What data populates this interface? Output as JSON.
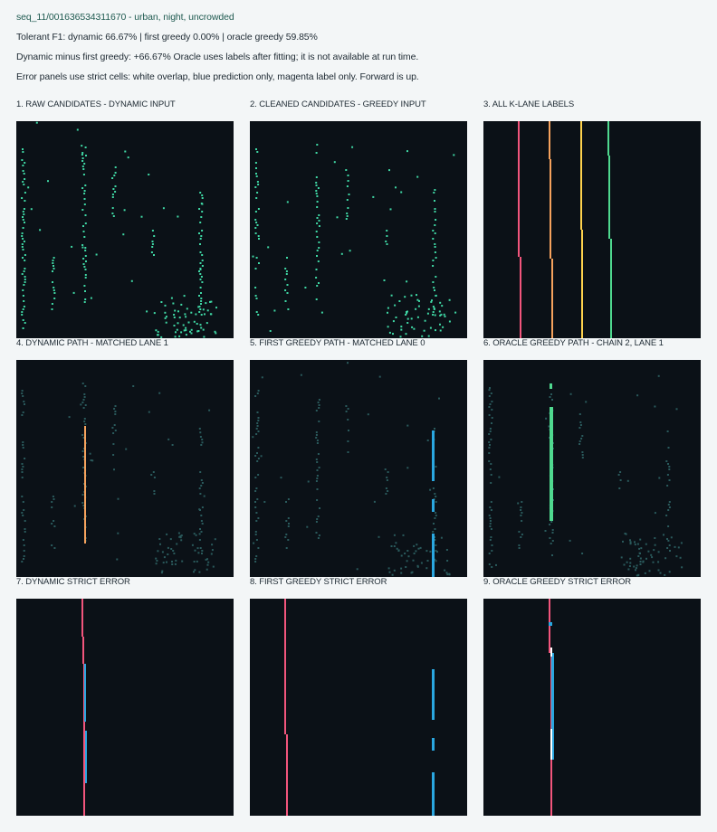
{
  "header": {
    "sequence": "seq_11/001636534311670 - urban, night, uncrowded",
    "f1_line": "Tolerant F1: dynamic 66.67%  |  first greedy 0.00%  |  oracle greedy 59.85%",
    "diff_line": "Dynamic minus first greedy: +66.67% Oracle uses labels after fitting; it is not available at run time.",
    "legend_line": "Error panels use strict cells: white overlap, blue prediction only, magenta label only. Forward is up."
  },
  "panels": [
    {
      "title": "1. RAW CANDIDATES - DYNAMIC INPUT"
    },
    {
      "title": "2. CLEANED CANDIDATES - GREEDY INPUT"
    },
    {
      "title": "3. ALL K-LANE LABELS"
    },
    {
      "title": "4. DYNAMIC PATH - MATCHED LANE 1"
    },
    {
      "title": "5. FIRST GREEDY PATH - MATCHED LANE 0"
    },
    {
      "title": "6. ORACLE GREEDY PATH - CHAIN 2, LANE 1"
    },
    {
      "title": "7. DYNAMIC STRICT ERROR"
    },
    {
      "title": "8. FIRST GREEDY STRICT ERROR"
    },
    {
      "title": "9. ORACLE GREEDY STRICT ERROR"
    }
  ],
  "colors": {
    "panel_bg": "#0b1117",
    "candidate": "#3fd7a4",
    "candidate_dim": "#2a5a5c",
    "lane_magenta": "#f2557c",
    "lane_orange": "#f5a25d",
    "lane_yellow": "#ffd34d",
    "lane_green": "#4fd98f",
    "prediction_blue": "#2aa7e0",
    "overlap_white": "#ffffff"
  }
}
